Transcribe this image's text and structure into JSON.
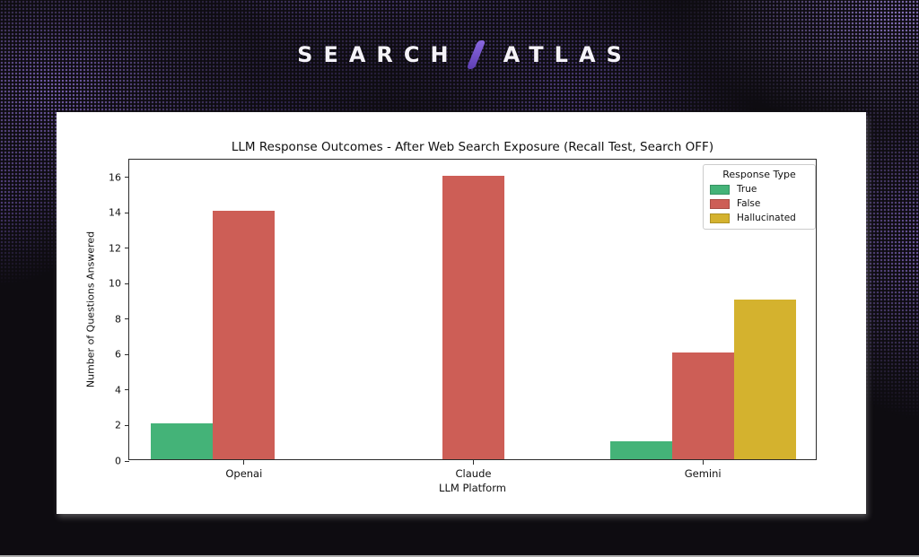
{
  "background": {
    "base_color": "#0e0c11",
    "pattern_color": "#7a62b4",
    "bottom_edge_color": "#adadad"
  },
  "logo": {
    "word1": "SEARCH",
    "word2": "ATLAS",
    "slash_color": "#6f4cc8"
  },
  "chart_data": {
    "type": "bar",
    "title": "LLM Response Outcomes - After Web Search Exposure (Recall Test, Search OFF)",
    "xlabel": "LLM Platform",
    "ylabel": "Number of Questions Answered",
    "categories": [
      "Openai",
      "Claude",
      "Gemini"
    ],
    "series": [
      {
        "name": "True",
        "color": "#44b378",
        "values": [
          2,
          0,
          1
        ]
      },
      {
        "name": "False",
        "color": "#cd5e56",
        "values": [
          14,
          16,
          6
        ]
      },
      {
        "name": "Hallucinated",
        "color": "#d4b22e",
        "values": [
          0,
          0,
          9
        ]
      }
    ],
    "yticks": [
      0,
      2,
      4,
      6,
      8,
      10,
      12,
      14,
      16
    ],
    "ylim": [
      0,
      17
    ],
    "grid": false,
    "legend": {
      "title": "Response Type",
      "position": "upper right"
    },
    "plot_bg": "#ffffff",
    "spine_color": "#2b2b2b"
  }
}
